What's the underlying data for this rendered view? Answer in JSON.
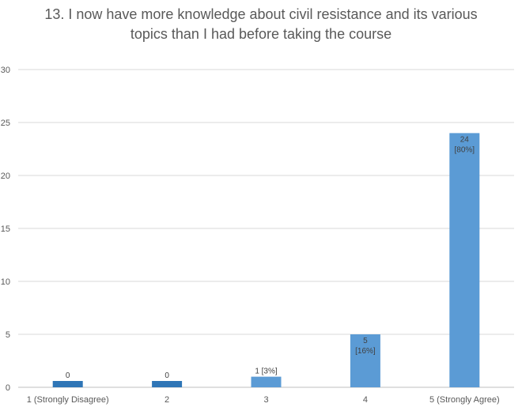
{
  "chart_data": {
    "type": "bar",
    "title_lines": [
      "13. I now have more knowledge about civil resistance and its various",
      "topics than I had before taking the course"
    ],
    "categories": [
      "1 (Strongly Disagree)",
      "2",
      "3",
      "4",
      "5 (Strongly Agree)"
    ],
    "values": [
      0,
      0,
      1,
      5,
      24
    ],
    "data_labels": [
      [
        "0"
      ],
      [
        "0"
      ],
      [
        "1 [3%]"
      ],
      [
        "5",
        "[16%]"
      ],
      [
        "24",
        "[80%]"
      ]
    ],
    "bar_colors": [
      "#2E75B6",
      "#2E75B6",
      "#5B9BD5",
      "#5B9BD5",
      "#5B9BD5"
    ],
    "ylim": [
      0,
      30
    ],
    "yticks": [
      0,
      5,
      10,
      15,
      20,
      25,
      30
    ],
    "grid": true,
    "legend": "none"
  }
}
